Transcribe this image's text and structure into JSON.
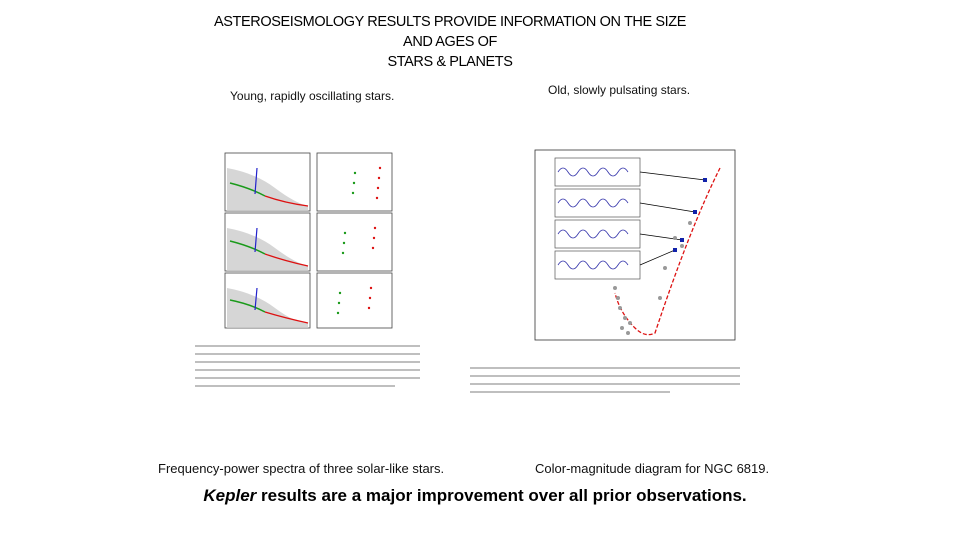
{
  "slide": {
    "title_lines": [
      "ASTEROSEISMOLOGY RESULTS PROVIDE INFORMATION ON THE SIZE",
      "AND AGES OF",
      "STARS & PLANETS"
    ],
    "left": {
      "label": "Young, rapidly oscillating stars.",
      "caption": "Frequency-power spectra of three solar-like stars."
    },
    "right": {
      "label": "Old, slowly pulsating stars.",
      "caption": "Color-magnitude diagram for NGC 6819."
    },
    "footer": {
      "emphasis": "Kepler",
      "text": "results are a major improvement over all prior observations."
    }
  }
}
